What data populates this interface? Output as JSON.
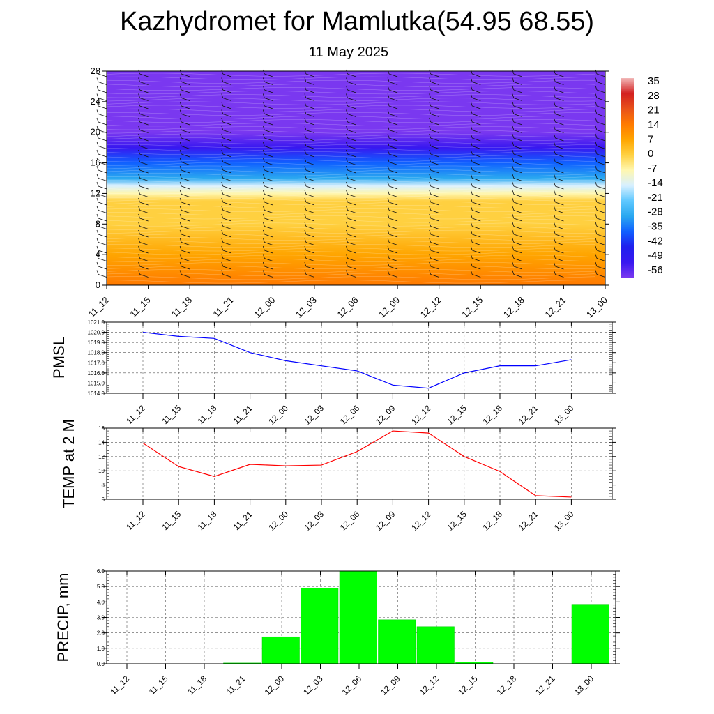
{
  "title": "Kazhydromet for Mamlutka(54.95 68.55)",
  "subtitle": "11 May 2025",
  "time_labels": [
    "11_12",
    "11_15",
    "11_18",
    "11_21",
    "12_00",
    "12_03",
    "12_06",
    "12_09",
    "12_12",
    "12_15",
    "12_18",
    "12_21",
    "13_00"
  ],
  "chart_data": [
    {
      "type": "heatmap",
      "name": "cross-section",
      "xlabel": "",
      "ylabel": "",
      "x": [
        "11_12",
        "11_15",
        "11_18",
        "11_21",
        "12_00",
        "12_03",
        "12_06",
        "12_09",
        "12_12",
        "12_15",
        "12_18",
        "12_21",
        "13_00"
      ],
      "ylim": [
        0,
        28
      ],
      "yticks": [
        0,
        4,
        8,
        12,
        16,
        20,
        24,
        28
      ],
      "colorbar": {
        "labels": [
          "35",
          "28",
          "21",
          "14",
          "7",
          "0",
          "-7",
          "-14",
          "-21",
          "-28",
          "-35",
          "-42",
          "-49",
          "-56"
        ],
        "colors": [
          "#f2b8b8",
          "#d32020",
          "#e8521a",
          "#ff7a00",
          "#ffa500",
          "#ffd040",
          "#fff7b0",
          "#d8f0ff",
          "#5fc8ff",
          "#2aa8f0",
          "#1060ff",
          "#2020ee",
          "#3818f0",
          "#7a38f0"
        ]
      },
      "profile": [
        {
          "level": 0,
          "value": 16
        },
        {
          "level": 4,
          "value": 10
        },
        {
          "level": 8,
          "value": 4
        },
        {
          "level": 11,
          "value": 0
        },
        {
          "level": 12,
          "value": -6
        },
        {
          "level": 13,
          "value": -14
        },
        {
          "level": 14,
          "value": -22
        },
        {
          "level": 16,
          "value": -32
        },
        {
          "level": 18,
          "value": -44
        },
        {
          "level": 20,
          "value": -50
        },
        {
          "level": 24,
          "value": -56
        },
        {
          "level": 28,
          "value": -50
        }
      ]
    },
    {
      "type": "line",
      "name": "pmsl",
      "ylabel": "PMSL",
      "x": [
        "11_12",
        "11_15",
        "11_18",
        "11_21",
        "12_00",
        "12_03",
        "12_06",
        "12_09",
        "12_12",
        "12_15",
        "12_18",
        "12_21",
        "13_00"
      ],
      "values": [
        1020.0,
        1019.6,
        1019.4,
        1018.0,
        1017.2,
        1016.7,
        1016.2,
        1014.8,
        1014.5,
        1016.0,
        1016.7,
        1016.7,
        1017.3
      ],
      "ylim": [
        1014.0,
        1021.0
      ],
      "yticks": [
        "1014.0",
        "1015.0",
        "1016.0",
        "1017.0",
        "1018.0",
        "1019.0",
        "1020.0",
        "1021.0"
      ],
      "color": "#0000ff",
      "grid": true
    },
    {
      "type": "line",
      "name": "temp",
      "ylabel": "TEMP at 2 M",
      "x": [
        "11_12",
        "11_15",
        "11_18",
        "11_21",
        "12_00",
        "12_03",
        "12_06",
        "12_09",
        "12_12",
        "12_15",
        "12_18",
        "12_21",
        "13_00"
      ],
      "values": [
        13.9,
        10.6,
        9.2,
        10.9,
        10.7,
        10.8,
        12.7,
        15.6,
        15.3,
        12.0,
        9.9,
        6.5,
        6.3
      ],
      "ylim": [
        6,
        16
      ],
      "yticks": [
        "6",
        "8",
        "10",
        "12",
        "14",
        "16"
      ],
      "color": "#ff0000",
      "grid": true
    },
    {
      "type": "bar",
      "name": "precip",
      "ylabel": "PRECIP, mm",
      "categories": [
        "11_12",
        "11_15",
        "11_18",
        "11_21",
        "12_00",
        "12_03",
        "12_06",
        "12_09",
        "12_12",
        "12_15",
        "12_18",
        "12_21",
        "13_00"
      ],
      "values": [
        0,
        0,
        0,
        0.05,
        1.75,
        4.9,
        6.0,
        2.85,
        2.4,
        0.1,
        0,
        0,
        3.85
      ],
      "ylim": [
        0,
        6.0
      ],
      "yticks": [
        "0.0",
        "1.0",
        "2.0",
        "3.0",
        "4.0",
        "5.0",
        "6.0"
      ],
      "color": "#00ff00",
      "grid": true
    }
  ]
}
